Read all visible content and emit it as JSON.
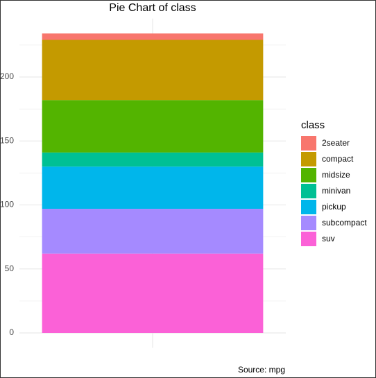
{
  "chart_data": {
    "type": "stacked_bar",
    "title": "Pie Chart of class",
    "caption": "Source: mpg",
    "legend_title": "class",
    "categories": [
      null
    ],
    "series": [
      {
        "name": "2seater",
        "color": "#F8766D",
        "values": [
          5
        ]
      },
      {
        "name": "compact",
        "color": "#C49A00",
        "values": [
          47
        ]
      },
      {
        "name": "midsize",
        "color": "#53B400",
        "values": [
          41
        ]
      },
      {
        "name": "minivan",
        "color": "#00C094",
        "values": [
          11
        ]
      },
      {
        "name": "pickup",
        "color": "#00B6EB",
        "values": [
          33
        ]
      },
      {
        "name": "subcompact",
        "color": "#A58AFF",
        "values": [
          35
        ]
      },
      {
        "name": "suv",
        "color": "#FB61D7",
        "values": [
          62
        ]
      }
    ],
    "ylim": [
      -11.7,
      245.7
    ],
    "yticks": [
      0,
      50,
      100,
      150,
      200
    ],
    "y_minor_ticks": [
      25,
      75,
      125,
      175,
      225
    ],
    "grid": true,
    "legend": "right"
  }
}
